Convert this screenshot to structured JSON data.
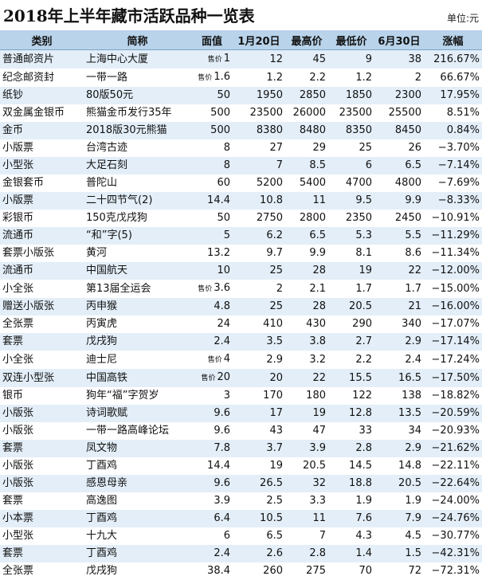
{
  "title": "2018年上半年藏市活跃品种一览表",
  "unit": "单位:元",
  "table": {
    "columns": [
      "类别",
      "简称",
      "面值",
      "1月20日",
      "最高价",
      "最低价",
      "6月30日",
      "涨幅"
    ],
    "rows": [
      [
        "普通邮资片",
        "上海中心大厦",
        {
          "prefix": "售价",
          "value": "1"
        },
        "12",
        "45",
        "9",
        "38",
        "216.67%"
      ],
      [
        "纪念邮资封",
        "一带一路",
        {
          "prefix": "售价",
          "value": "1.6"
        },
        "1.2",
        "2.2",
        "1.2",
        "2",
        "66.67%"
      ],
      [
        "纸钞",
        "80版50元",
        "50",
        "1950",
        "2850",
        "1850",
        "2300",
        "17.95%"
      ],
      [
        "双金属金银币",
        "熊猫金币发行35年",
        "500",
        "23500",
        "26000",
        "23500",
        "25500",
        "8.51%"
      ],
      [
        "金币",
        "2018版30元熊猫",
        "500",
        "8380",
        "8480",
        "8350",
        "8450",
        "0.84%"
      ],
      [
        "小版票",
        "台湾古迹",
        "8",
        "27",
        "29",
        "25",
        "26",
        "−3.70%"
      ],
      [
        "小型张",
        "大足石刻",
        "8",
        "7",
        "8.5",
        "6",
        "6.5",
        "−7.14%"
      ],
      [
        "金银套币",
        "普陀山",
        "60",
        "5200",
        "5400",
        "4700",
        "4800",
        "−7.69%"
      ],
      [
        "小版票",
        "二十四节气(2)",
        "14.4",
        "10.8",
        "11",
        "9.5",
        "9.9",
        "−8.33%"
      ],
      [
        "彩银币",
        "150克戊戌狗",
        "50",
        "2750",
        "2800",
        "2350",
        "2450",
        "−10.91%"
      ],
      [
        "流通币",
        "“和”字(5)",
        "5",
        "6.2",
        "6.5",
        "5.3",
        "5.5",
        "−11.29%"
      ],
      [
        "套票小版张",
        "黄河",
        "13.2",
        "9.7",
        "9.9",
        "8.1",
        "8.6",
        "−11.34%"
      ],
      [
        "流通币",
        "中国航天",
        "10",
        "25",
        "28",
        "19",
        "22",
        "−12.00%"
      ],
      [
        "小全张",
        "第13届全运会",
        {
          "prefix": "售价",
          "value": "3.6"
        },
        "2",
        "2.1",
        "1.7",
        "1.7",
        "−15.00%"
      ],
      [
        "赠送小版张",
        "丙申猴",
        "4.8",
        "25",
        "28",
        "20.5",
        "21",
        "−16.00%"
      ],
      [
        "全张票",
        "丙寅虎",
        "24",
        "410",
        "430",
        "290",
        "340",
        "−17.07%"
      ],
      [
        "套票",
        "戊戌狗",
        "2.4",
        "3.5",
        "3.8",
        "2.7",
        "2.9",
        "−17.14%"
      ],
      [
        "小全张",
        "迪士尼",
        {
          "prefix": "售价",
          "value": "4"
        },
        "2.9",
        "3.2",
        "2.2",
        "2.4",
        "−17.24%"
      ],
      [
        "双连小型张",
        "中国高铁",
        {
          "prefix": "售价",
          "value": "20"
        },
        "20",
        "22",
        "15.5",
        "16.5",
        "−17.50%"
      ],
      [
        "银币",
        "狗年“福”字贺岁",
        "3",
        "170",
        "180",
        "122",
        "138",
        "−18.82%"
      ],
      [
        "小版张",
        "诗词歌赋",
        "9.6",
        "17",
        "19",
        "12.8",
        "13.5",
        "−20.59%"
      ],
      [
        "小版张",
        "一带一路高峰论坛",
        "9.6",
        "43",
        "47",
        "33",
        "34",
        "−20.93%"
      ],
      [
        "套票",
        "凤文物",
        "7.8",
        "3.7",
        "3.9",
        "2.8",
        "2.9",
        "−21.62%"
      ],
      [
        "小版张",
        "丁酉鸡",
        "14.4",
        "19",
        "20.5",
        "14.5",
        "14.8",
        "−22.11%"
      ],
      [
        "小版张",
        "感恩母亲",
        "9.6",
        "26.5",
        "32",
        "18.8",
        "20.5",
        "−22.64%"
      ],
      [
        "套票",
        "高逸图",
        "3.9",
        "2.5",
        "3.3",
        "1.9",
        "1.9",
        "−24.00%"
      ],
      [
        "小本票",
        "丁酉鸡",
        "6.4",
        "10.5",
        "11",
        "7.6",
        "7.9",
        "−24.76%"
      ],
      [
        "小型张",
        "十九大",
        "6",
        "6.5",
        "7",
        "4.3",
        "4.5",
        "−30.77%"
      ],
      [
        "套票",
        "丁酉鸡",
        "2.4",
        "2.6",
        "2.8",
        "1.4",
        "1.5",
        "−42.31%"
      ],
      [
        "全张票",
        "戊戌狗",
        "38.4",
        "260",
        "275",
        "70",
        "72",
        "−72.31%"
      ]
    ]
  }
}
